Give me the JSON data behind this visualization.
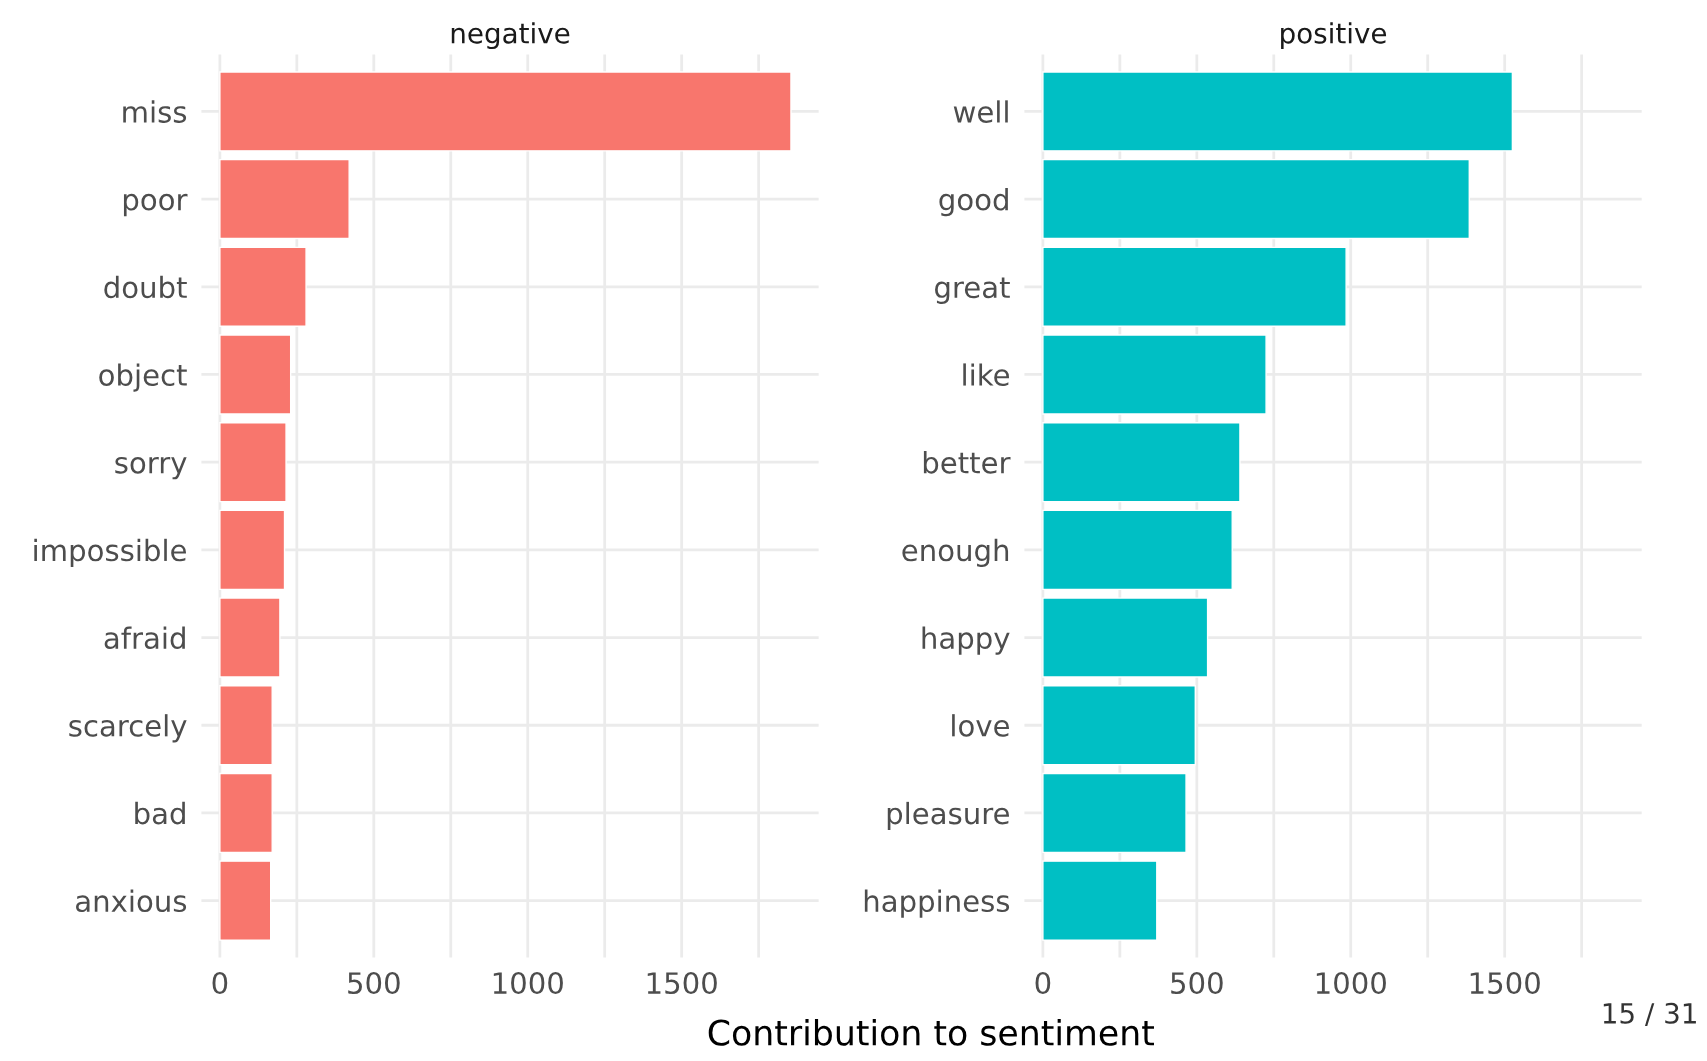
{
  "chart_data": [
    {
      "type": "bar",
      "orientation": "horizontal",
      "title": "negative",
      "xlabel": "Contribution to sentiment",
      "categories": [
        "miss",
        "poor",
        "doubt",
        "object",
        "sorry",
        "impossible",
        "afraid",
        "scarcely",
        "bad",
        "anxious"
      ],
      "series": [
        {
          "color": "#f8766d",
          "values": [
            1855,
            420,
            280,
            230,
            215,
            210,
            195,
            170,
            170,
            165
          ]
        }
      ],
      "xlim": [
        -60,
        1945
      ],
      "xticks": [
        0,
        {
          "value": 250,
          "label": null
        },
        500,
        {
          "value": 750,
          "label": null
        },
        1000,
        {
          "value": 1250,
          "label": null
        },
        1500,
        {
          "value": 1750,
          "label": null
        }
      ],
      "grid": true,
      "legend": false
    },
    {
      "type": "bar",
      "orientation": "horizontal",
      "title": "positive",
      "annotations": [
        "15 / 31"
      ],
      "categories": [
        "well",
        "good",
        "great",
        "like",
        "better",
        "enough",
        "happy",
        "love",
        "pleasure",
        "happiness"
      ],
      "series": [
        {
          "color": "#00bfc4",
          "values": [
            1525,
            1385,
            985,
            725,
            640,
            615,
            535,
            495,
            465,
            370
          ]
        }
      ],
      "xlim": [
        -60,
        1945
      ],
      "xticks": [
        0,
        {
          "value": 250,
          "label": null
        },
        500,
        {
          "value": 750,
          "label": null
        },
        1000,
        {
          "value": 1250,
          "label": null
        },
        1500,
        {
          "value": 1750,
          "label": null
        }
      ],
      "grid": true,
      "legend": false
    }
  ]
}
